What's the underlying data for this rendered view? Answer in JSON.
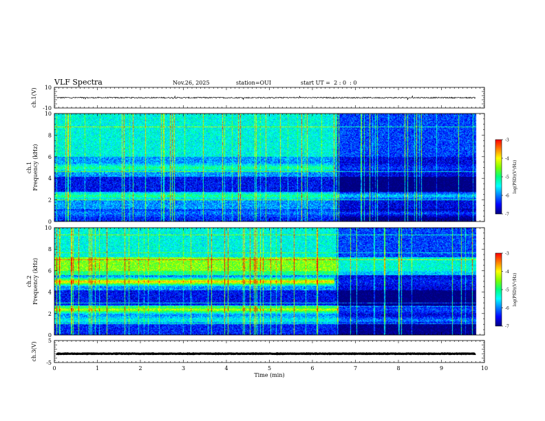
{
  "header": {
    "title": "VLF Spectra",
    "date": "Nov.26, 2025",
    "station": "station=OUI",
    "start_ut": "start UT =  2 : 0  : 0"
  },
  "chart_data": [
    {
      "type": "line",
      "panel": "ch1-waveform",
      "ylabel": "ch.1(V)",
      "ylim": [
        -10,
        10
      ],
      "yticks": [
        "10",
        "-10"
      ],
      "xlim": [
        0,
        10
      ],
      "series": [
        {
          "name": "ch.1",
          "mean": 0,
          "noise_amplitude": 0.6
        }
      ]
    },
    {
      "type": "heatmap",
      "panel": "ch1-spectrogram",
      "ylabel_top": "ch.1",
      "ylabel": "Frequency (kHz)",
      "ylim": [
        0,
        10
      ],
      "yticks": [
        "0",
        "2",
        "4",
        "6",
        "8",
        "10"
      ],
      "xlim": [
        0,
        10
      ],
      "data_end_min": 9.8,
      "colorbar": {
        "label": "log(PSD)(V²/Hz)",
        "range": [
          -7,
          -3
        ],
        "ticks": [
          "-3",
          "-4",
          "-5",
          "-6",
          "-7"
        ]
      },
      "bands": [
        {
          "freq_khz": 5.0,
          "level_before": -5.0,
          "level_after": -6.3,
          "change_min": 6.5
        },
        {
          "freq_khz": 2.4,
          "level_before": -5.0,
          "level_after": -5.6,
          "change_min": 6.6
        },
        {
          "freq_khz": 0.8,
          "level_before": -6.0,
          "level_after": -6.2,
          "change_min": 6.6
        }
      ]
    },
    {
      "type": "heatmap",
      "panel": "ch2-spectrogram",
      "ylabel_top": "ch.2",
      "ylabel": "Frequency (kHz)",
      "ylim": [
        0,
        10
      ],
      "yticks": [
        "0",
        "2",
        "4",
        "6",
        "8",
        "10"
      ],
      "xlim": [
        0,
        10
      ],
      "data_end_min": 9.8,
      "colorbar": {
        "label": "log(PSD)(V²/Hz)",
        "range": [
          -7,
          -3
        ],
        "ticks": [
          "-3",
          "-4",
          "-5",
          "-6",
          "-7"
        ]
      },
      "bands": [
        {
          "freq_khz": 5.0,
          "level_before": -3.8,
          "level_after": -6.4,
          "change_min": 6.5
        },
        {
          "freq_khz": 2.4,
          "level_before": -4.2,
          "level_after": -6.2,
          "change_min": 6.6
        },
        {
          "freq_khz": 6.3,
          "level_before": -5.2,
          "level_after": -5.4,
          "change_min": 6.6
        },
        {
          "freq_khz": 1.4,
          "level_before": -5.4,
          "level_after": -6.0,
          "change_min": 6.6
        }
      ]
    },
    {
      "type": "line",
      "panel": "ch3-waveform",
      "ylabel": "ch.3(V)",
      "ylim": [
        -5,
        5
      ],
      "yticks": [
        "5",
        "-5"
      ],
      "xlim": [
        0,
        10
      ],
      "series": [
        {
          "name": "ch.3",
          "mean": -1.0,
          "noise_amplitude": 0.1
        }
      ]
    }
  ],
  "x_axis": {
    "label": "Time (min)",
    "ticks": [
      "0",
      "1",
      "2",
      "3",
      "4",
      "5",
      "6",
      "7",
      "8",
      "9",
      "10"
    ]
  },
  "colors": {
    "axis": "#000000",
    "trace": "#000000",
    "colormap": [
      "#00007f",
      "#0000ff",
      "#007fff",
      "#00ffff",
      "#00ff7f",
      "#7fff00",
      "#ffff00",
      "#ff7f00",
      "#ff0000",
      "#ffffff"
    ]
  }
}
